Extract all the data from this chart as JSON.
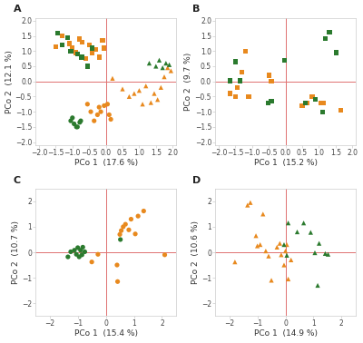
{
  "panels": [
    {
      "label": "A",
      "xlabel": "PCo 1  (17.6 %)",
      "ylabel": "PCo 2  (12.1 %)",
      "xlim": [
        -2.1,
        2.1
      ],
      "ylim": [
        -2.1,
        2.1
      ],
      "xticks": [
        -2.0,
        -1.5,
        -1.0,
        -0.5,
        0.0,
        0.5,
        1.0,
        1.5,
        2.0
      ],
      "yticks": [
        -2.0,
        -1.5,
        -1.0,
        -0.5,
        0.0,
        0.5,
        1.0,
        1.5,
        2.0
      ],
      "series": [
        {
          "marker": "s",
          "color": "#e8891e",
          "x": [
            -1.5,
            -1.3,
            -1.1,
            -1.0,
            -0.9,
            -0.8,
            -0.7,
            -0.6,
            -0.5,
            -0.4,
            -0.3,
            -0.2,
            -0.1,
            -0.05
          ],
          "y": [
            1.15,
            1.5,
            1.25,
            1.1,
            0.95,
            1.4,
            1.3,
            0.75,
            1.2,
            0.95,
            1.05,
            0.8,
            1.35,
            1.1
          ]
        },
        {
          "marker": "s",
          "color": "#2b7a2e",
          "x": [
            -1.45,
            -1.3,
            -1.15,
            -1.05,
            -0.85,
            -0.72,
            -0.55,
            -0.42
          ],
          "y": [
            1.6,
            1.2,
            1.45,
            1.0,
            0.9,
            0.8,
            0.5,
            1.1
          ]
        },
        {
          "marker": "^",
          "color": "#e8891e",
          "x": [
            0.2,
            0.5,
            0.7,
            0.85,
            1.0,
            1.1,
            1.2,
            1.35,
            1.45,
            1.55,
            1.65,
            1.75,
            1.85,
            1.95
          ],
          "y": [
            0.1,
            -0.25,
            -0.5,
            -0.4,
            -0.3,
            -0.75,
            -0.15,
            -0.7,
            -0.4,
            -0.6,
            -0.2,
            0.15,
            0.45,
            0.35
          ]
        },
        {
          "marker": "^",
          "color": "#2b7a2e",
          "x": [
            1.3,
            1.5,
            1.6,
            1.7,
            1.8,
            1.9
          ],
          "y": [
            0.6,
            0.5,
            0.7,
            0.45,
            0.6,
            0.55
          ]
        },
        {
          "marker": "o",
          "color": "#e8891e",
          "x": [
            -0.55,
            -0.45,
            -0.35,
            -0.25,
            -0.2,
            -0.15,
            -0.05,
            0.05,
            0.1,
            0.15
          ],
          "y": [
            -0.75,
            -1.0,
            -1.3,
            -1.1,
            -0.85,
            -1.0,
            -0.8,
            -0.75,
            -1.1,
            -1.25
          ]
        },
        {
          "marker": "o",
          "color": "#2b7a2e",
          "x": [
            -0.75,
            -0.85,
            -0.95,
            -1.05,
            -1.0,
            -0.88,
            -0.78
          ],
          "y": [
            -1.3,
            -1.5,
            -1.4,
            -1.3,
            -1.2,
            -1.5,
            -1.35
          ]
        }
      ]
    },
    {
      "label": "B",
      "xlabel": "PCo 1  (15.2 %)",
      "ylabel": "PCo 2  (9.7 %)",
      "xlim": [
        -2.1,
        2.1
      ],
      "ylim": [
        -2.1,
        2.1
      ],
      "xticks": [
        -2.0,
        -1.5,
        -1.0,
        -0.5,
        0.0,
        0.5,
        1.0,
        1.5,
        2.0
      ],
      "yticks": [
        -2.0,
        -1.5,
        -1.0,
        -0.5,
        0.0,
        0.5,
        1.0,
        1.5,
        2.0
      ],
      "series": [
        {
          "marker": "s",
          "color": "#e8891e",
          "x": [
            -1.65,
            -1.5,
            -1.45,
            -1.3,
            -1.2,
            -1.1,
            -0.5,
            -0.42,
            0.5,
            0.65,
            0.8,
            1.05,
            1.15,
            1.65
          ],
          "y": [
            -0.4,
            -0.5,
            -0.2,
            0.3,
            1.0,
            -0.5,
            0.2,
            0.0,
            -0.8,
            -0.7,
            -0.5,
            -0.7,
            -0.7,
            -0.95
          ]
        },
        {
          "marker": "s",
          "color": "#2b7a2e",
          "x": [
            -1.65,
            -1.5,
            -1.35,
            -0.52,
            -0.42,
            -0.02,
            0.6,
            0.9,
            1.12,
            1.2,
            1.32,
            1.52
          ],
          "y": [
            0.02,
            0.65,
            0.02,
            -0.7,
            -0.65,
            0.7,
            -0.7,
            -0.6,
            -1.0,
            1.42,
            1.62,
            0.95
          ]
        }
      ]
    },
    {
      "label": "C",
      "xlabel": "PCo 1  (15.4 %)",
      "ylabel": "PCo 2  (10.7 %)",
      "xlim": [
        -2.5,
        2.5
      ],
      "ylim": [
        -2.5,
        2.5
      ],
      "xticks": [
        -2,
        -1,
        0,
        1,
        2
      ],
      "yticks": [
        -2,
        -1,
        0,
        1,
        2
      ],
      "series": [
        {
          "marker": "o",
          "color": "#e8891e",
          "x": [
            -0.5,
            -0.28,
            0.4,
            0.42,
            0.5,
            0.55,
            0.62,
            0.7,
            0.82,
            0.9,
            1.05,
            1.15,
            1.35,
            2.1
          ],
          "y": [
            -0.38,
            -0.08,
            -0.5,
            -1.15,
            0.7,
            0.85,
            1.0,
            1.1,
            0.88,
            1.3,
            0.72,
            1.42,
            1.62,
            -0.1
          ]
        },
        {
          "marker": "o",
          "color": "#2b7a2e",
          "x": [
            -1.35,
            -1.25,
            -1.12,
            -1.05,
            -1.0,
            -0.95,
            -0.9,
            -0.85,
            -0.82,
            -0.75,
            0.52
          ],
          "y": [
            -0.18,
            0.02,
            0.08,
            -0.08,
            0.18,
            -0.18,
            0.08,
            -0.1,
            0.2,
            0.02,
            0.5
          ]
        }
      ]
    },
    {
      "label": "D",
      "xlabel": "PCo 1  (14.9 %)",
      "ylabel": "PCo 2  (10.6 %)",
      "xlim": [
        -2.5,
        2.5
      ],
      "ylim": [
        -2.5,
        2.5
      ],
      "xticks": [
        -2,
        -1,
        0,
        1,
        2
      ],
      "yticks": [
        -2,
        -1,
        0,
        1,
        2
      ],
      "series": [
        {
          "marker": "^",
          "color": "#e8891e",
          "x": [
            -1.8,
            -1.35,
            -1.25,
            -1.05,
            -1.0,
            -0.9,
            -0.8,
            -0.7,
            -0.6,
            -0.5,
            -0.3,
            -0.2,
            -0.15,
            -0.05,
            0.0,
            0.05,
            0.1,
            0.2
          ],
          "y": [
            -0.38,
            1.85,
            1.95,
            0.65,
            0.25,
            0.3,
            1.5,
            0.05,
            -0.15,
            -1.1,
            0.2,
            0.35,
            -0.1,
            -0.5,
            0.05,
            0.3,
            -1.05,
            -0.3
          ]
        },
        {
          "marker": "^",
          "color": "#2b7a2e",
          "x": [
            -0.05,
            0.05,
            0.1,
            0.42,
            0.65,
            0.9,
            1.05,
            1.15,
            1.2,
            1.42,
            1.52
          ],
          "y": [
            0.3,
            -0.12,
            1.15,
            0.8,
            1.15,
            0.78,
            -0.02,
            -1.3,
            0.35,
            -0.05,
            -0.08
          ]
        }
      ]
    }
  ],
  "axline_color": "#e07070",
  "bg_color": "#ffffff",
  "spine_color": "#cccccc",
  "tick_fontsize": 5.5,
  "label_fontsize": 6.5,
  "panel_label_fontsize": 8,
  "marker_size": 14
}
